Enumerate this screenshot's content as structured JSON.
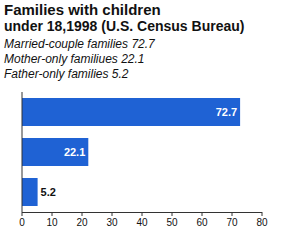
{
  "chart_data": {
    "type": "bar",
    "orientation": "horizontal",
    "title": "Families with children",
    "subtitle": "under 18,1998 (U.S. Census Bureau)",
    "categories": [
      "Married-couple families",
      "Mother-only familiues",
      "Father-only families"
    ],
    "values": [
      72.7,
      22.1,
      5.2
    ],
    "color": "#1f62d4",
    "xlim": [
      0,
      80
    ],
    "xticks": [
      0,
      10,
      20,
      30,
      40,
      50,
      60,
      70,
      80
    ],
    "grid": false,
    "data_labels": true
  }
}
